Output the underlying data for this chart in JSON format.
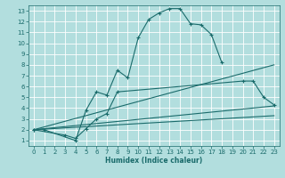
{
  "xlabel": "Humidex (Indice chaleur)",
  "background_color": "#b2dede",
  "grid_color": "#ffffff",
  "line_color": "#1a6b6b",
  "xlim": [
    -0.5,
    23.5
  ],
  "ylim": [
    0.5,
    13.5
  ],
  "xticks": [
    0,
    1,
    2,
    3,
    4,
    5,
    6,
    7,
    8,
    9,
    10,
    11,
    12,
    13,
    14,
    15,
    16,
    17,
    18,
    19,
    20,
    21,
    22,
    23
  ],
  "yticks": [
    1,
    2,
    3,
    4,
    5,
    6,
    7,
    8,
    9,
    10,
    11,
    12,
    13
  ],
  "lines": [
    {
      "x": [
        0,
        1,
        4,
        5,
        6,
        7,
        8,
        9,
        10,
        11,
        12,
        13,
        14,
        15,
        16,
        17,
        18
      ],
      "y": [
        2,
        2,
        1,
        3.8,
        5.5,
        5.2,
        7.5,
        6.8,
        10.5,
        12.2,
        12.8,
        13.2,
        13.2,
        11.8,
        11.7,
        10.8,
        8.2
      ],
      "marker": true
    },
    {
      "x": [
        0,
        3,
        4,
        5,
        6,
        7,
        8,
        20,
        21,
        22,
        23
      ],
      "y": [
        2,
        1.5,
        1.2,
        2.1,
        3.0,
        3.5,
        5.5,
        6.5,
        6.5,
        5.0,
        4.3
      ],
      "marker": true
    },
    {
      "x": [
        0,
        23
      ],
      "y": [
        2,
        8.0
      ],
      "marker": false
    },
    {
      "x": [
        0,
        23
      ],
      "y": [
        2,
        4.2
      ],
      "marker": false
    },
    {
      "x": [
        0,
        23
      ],
      "y": [
        2,
        3.3
      ],
      "marker": false
    }
  ]
}
